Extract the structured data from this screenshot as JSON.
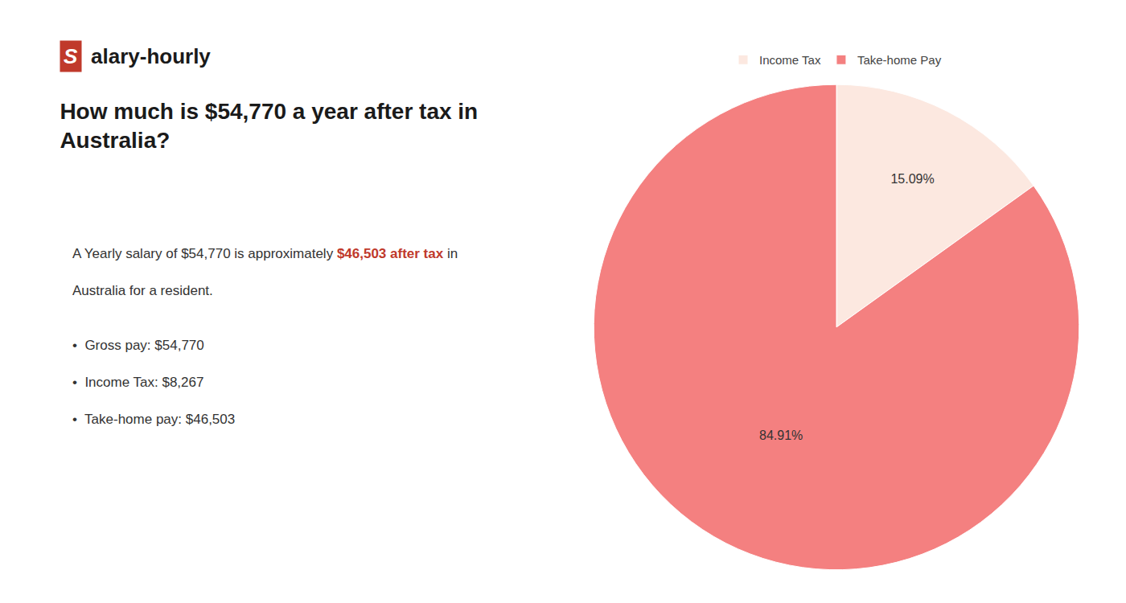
{
  "chart_data": {
    "type": "pie",
    "title": "How much is $54,770 a year after tax in\nAustralia?",
    "categories": [
      "Income Tax",
      "Take-home Pay"
    ],
    "values": [
      15.09,
      84.91
    ],
    "value_labels": [
      "15.09%",
      "84.91%"
    ],
    "colors": [
      "#fce8e0",
      "#f48080"
    ],
    "data_labels": true,
    "legend": "top",
    "annotations": [
      [
        {
          "text": "S",
          "color": "#c0392b"
        },
        {
          "text": "alary-hourly"
        }
      ],
      [
        {
          "text": "A Yearly salary of $54,770 is approximately "
        },
        {
          "text": "$46,503 after tax",
          "color": "#c0392b"
        },
        {
          "text": " in"
        }
      ],
      [
        {
          "text": "Australia for a resident."
        }
      ],
      [
        {
          "text": "•"
        },
        {
          "text": "Gross pay: $54,770"
        }
      ],
      [
        {
          "text": "•"
        },
        {
          "text": "Income Tax: $8,267"
        }
      ],
      [
        {
          "text": "•"
        },
        {
          "text": "Take-home pay: $46,503"
        }
      ]
    ]
  }
}
